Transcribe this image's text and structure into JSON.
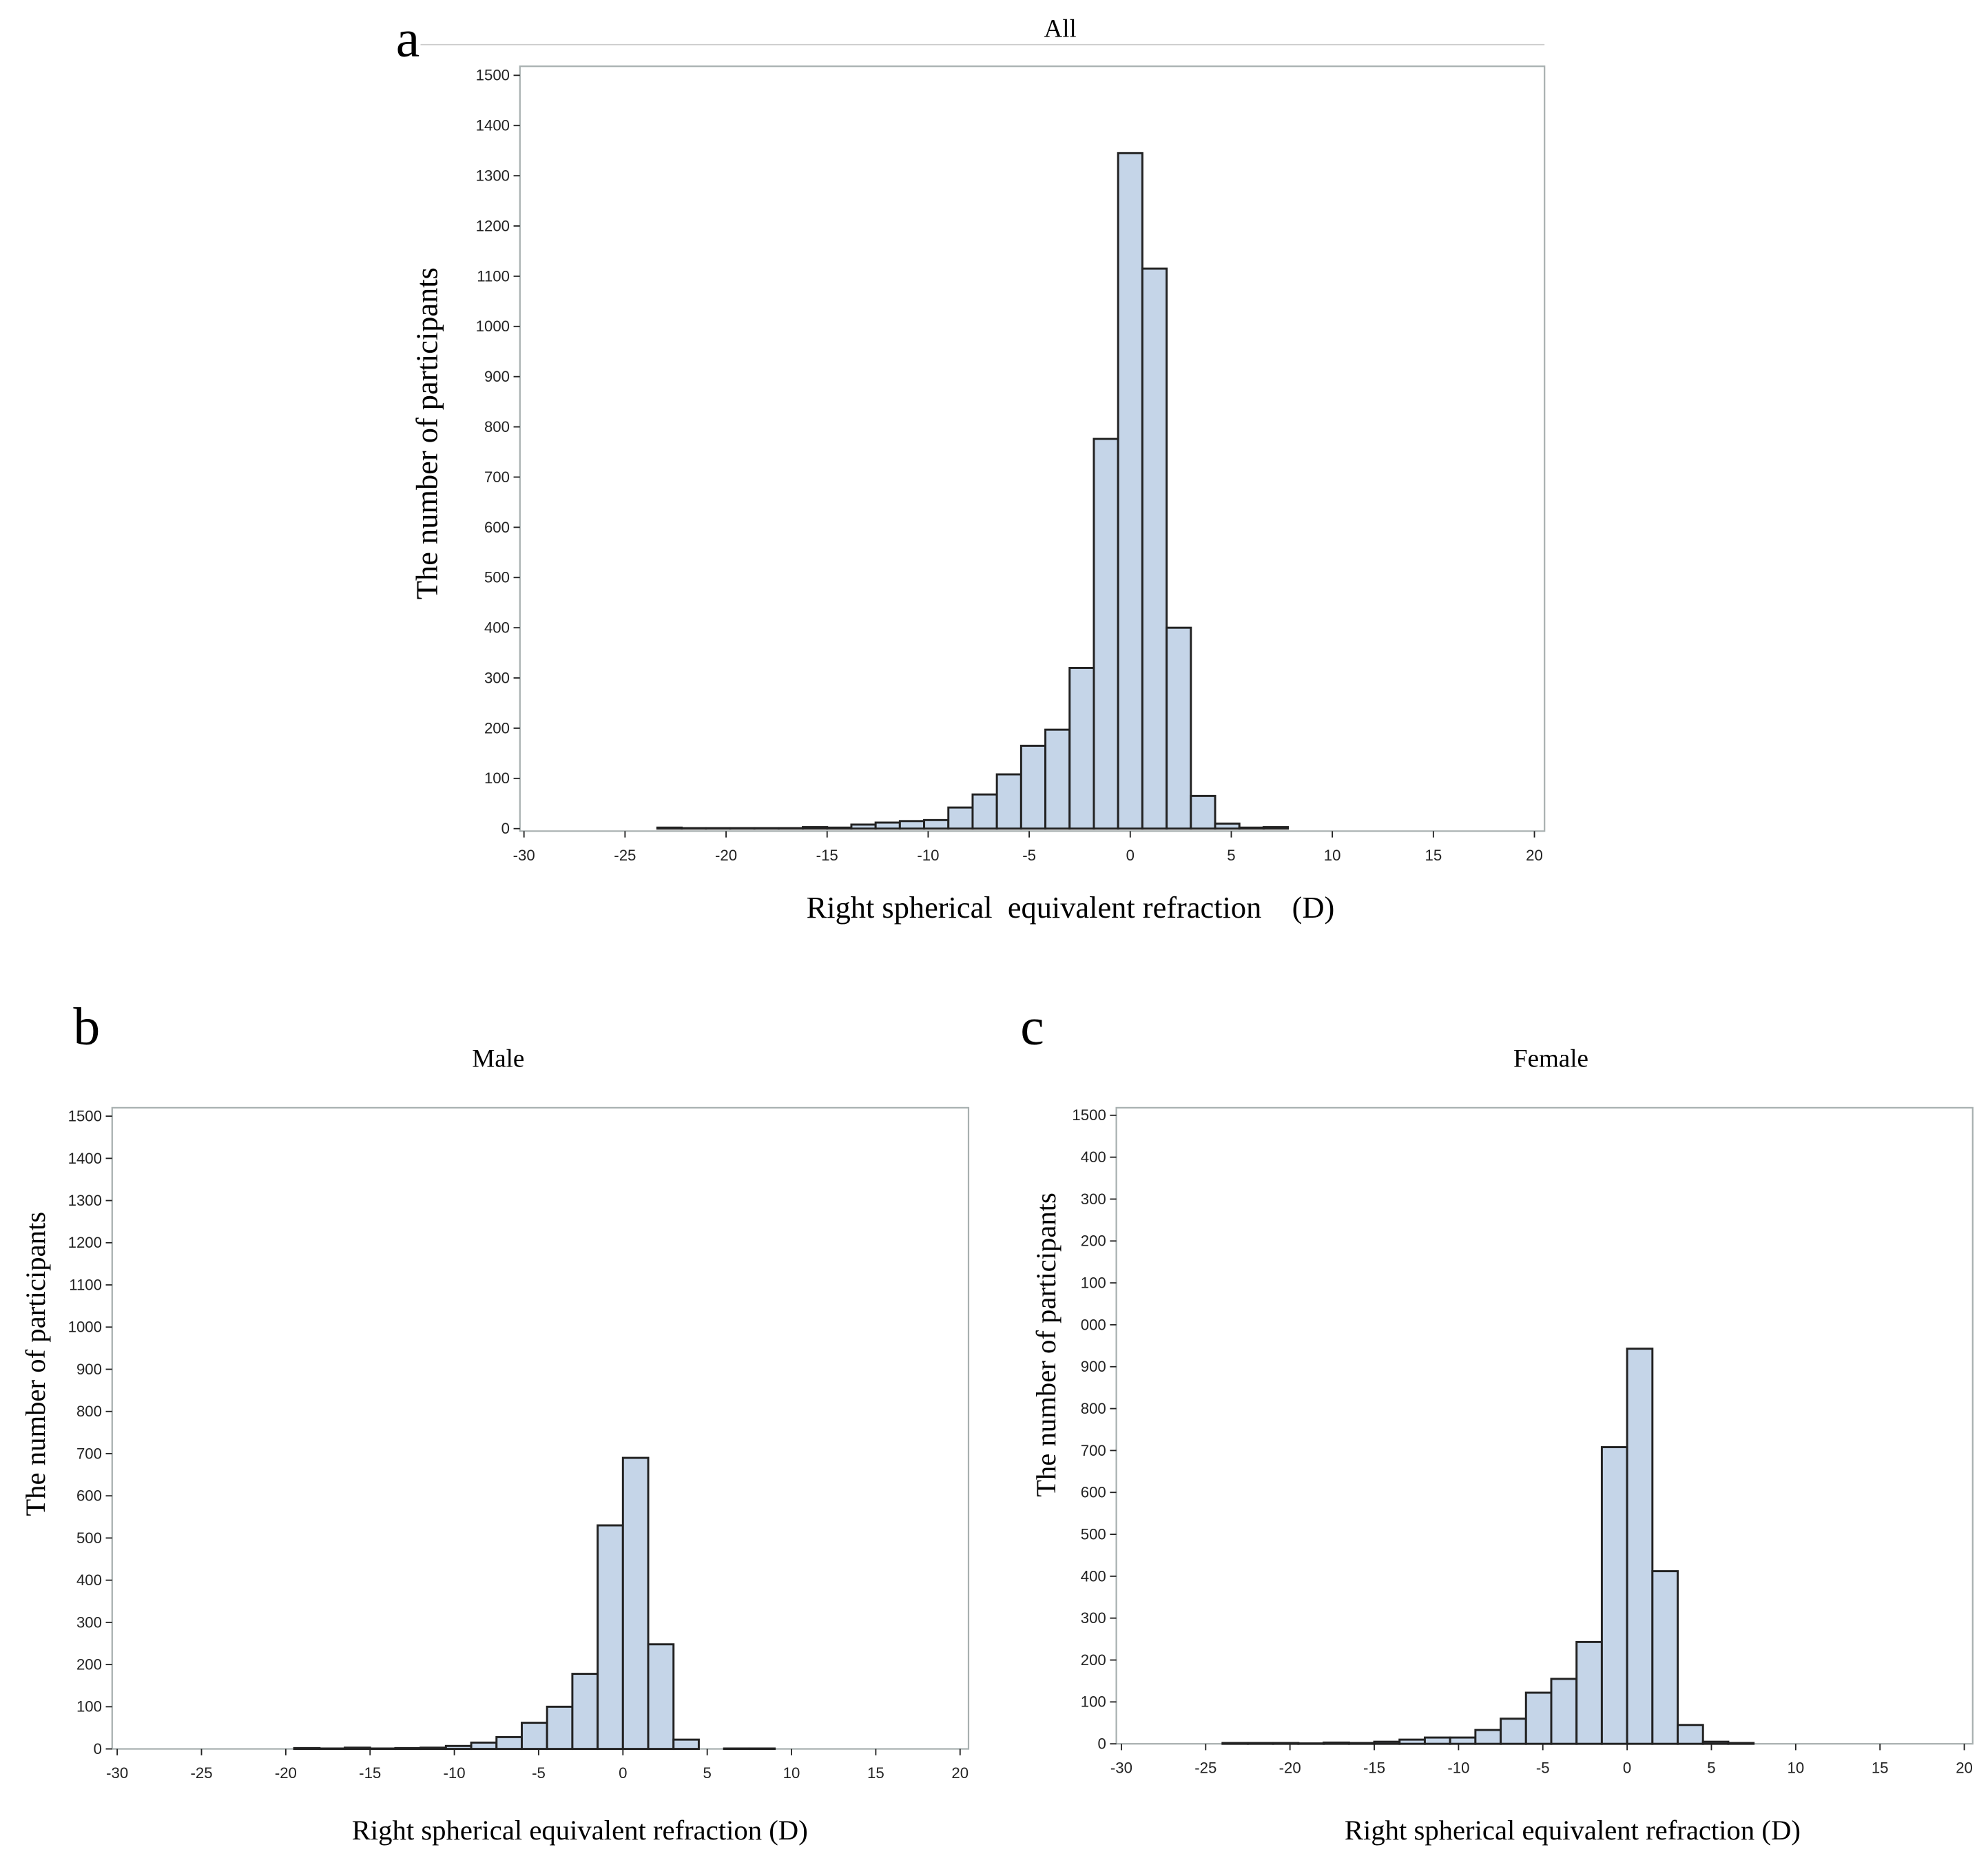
{
  "chart_data": [
    {
      "type": "histogram",
      "panel_label": "a",
      "title": "All",
      "x_label": "Right spherical  equivalent refraction    (D)",
      "y_label": "The number of participants",
      "bins": [
        -23.4,
        -22.2,
        -21,
        -19.8,
        -18.6,
        -17.4,
        -16.2,
        -15,
        -13.8,
        -12.6,
        -11.4,
        -10.2,
        -9,
        -7.8,
        -6.6,
        -5.4,
        -4.2,
        -3,
        -1.8,
        -0.6,
        0.6,
        1.8,
        3,
        4.2,
        5.4,
        6.6,
        7.8
      ],
      "values": [
        2,
        1,
        1,
        1,
        1,
        1,
        3,
        2,
        8,
        12,
        15,
        17,
        42,
        68,
        108,
        165,
        197,
        320,
        776,
        1345,
        1115,
        400,
        65,
        10,
        2,
        3
      ],
      "color": "#c5d5e8",
      "xlim": [
        -30.2,
        20.5
      ],
      "ylim": [
        -5,
        1518
      ],
      "xticks": [
        -30,
        -25,
        -20,
        -15,
        -10,
        -5,
        0,
        5,
        10,
        15,
        20
      ],
      "yticks": [
        0,
        100,
        200,
        300,
        400,
        500,
        600,
        700,
        800,
        900,
        1000,
        1100,
        1200,
        1300,
        1400,
        1500
      ]
    },
    {
      "type": "histogram",
      "panel_label": "b",
      "title": "Male",
      "x_label": "Right spherical equivalent refraction (D)",
      "y_label": "The number of participants",
      "bins": [
        -19.5,
        -18,
        -16.5,
        -15,
        -13.5,
        -12,
        -10.5,
        -9,
        -7.5,
        -6,
        -4.5,
        -3,
        -1.5,
        0,
        1.5,
        3,
        4.5,
        6,
        7.5,
        9
      ],
      "values": [
        2,
        1,
        3,
        1,
        2,
        3,
        7,
        15,
        28,
        62,
        100,
        178,
        530,
        690,
        248,
        22,
        0,
        1,
        1
      ],
      "color": "#c5d5e8",
      "xlim": [
        -30.3,
        20.5
      ],
      "ylim": [
        0,
        1520
      ],
      "xticks": [
        -30,
        -25,
        -20,
        -15,
        -10,
        -5,
        0,
        5,
        10,
        15,
        20
      ],
      "yticks": [
        0,
        100,
        200,
        300,
        400,
        500,
        600,
        700,
        800,
        900,
        1000,
        1100,
        1200,
        1300,
        1400,
        1500
      ]
    },
    {
      "type": "histogram",
      "panel_label": "c",
      "title": "Female",
      "x_label": "Right spherical equivalent refraction (D)",
      "y_label": "The number of participants",
      "bins": [
        -24,
        -22.5,
        -21,
        -19.5,
        -18,
        -16.5,
        -15,
        -13.5,
        -12,
        -10.5,
        -9,
        -7.5,
        -6,
        -4.5,
        -3,
        -1.5,
        0,
        1.5,
        3,
        4.5,
        6,
        7.5
      ],
      "values": [
        2,
        2,
        2,
        1,
        3,
        2,
        5,
        10,
        15,
        15,
        33,
        60,
        122,
        155,
        243,
        708,
        943,
        412,
        45,
        5,
        2
      ],
      "color": "#c5d5e8",
      "xlim": [
        -30.3,
        20.5
      ],
      "ylim": [
        0,
        1518
      ],
      "xticks": [
        -30,
        -25,
        -20,
        -15,
        -10,
        -5,
        0,
        5,
        10,
        15,
        20
      ],
      "yticks": [
        0,
        100,
        200,
        300,
        400,
        500,
        600,
        700,
        800,
        900,
        {
          "value": 1000,
          "label": "000"
        },
        {
          "value": 1100,
          "label": "100"
        },
        {
          "value": 1200,
          "label": "200"
        },
        {
          "value": 1300,
          "label": "300"
        },
        {
          "value": 1400,
          "label": "400"
        },
        1500
      ]
    }
  ]
}
